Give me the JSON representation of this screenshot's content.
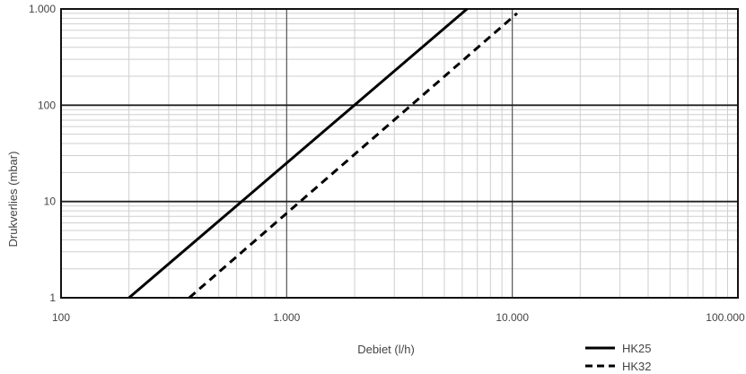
{
  "chart_data": {
    "type": "line",
    "x_scale": "log",
    "y_scale": "log",
    "xlabel": "Debiet (l/h)",
    "ylabel": "Drukverlies (mbar)",
    "xlim": [
      100,
      100000
    ],
    "ylim": [
      1,
      1000
    ],
    "x_ticks": [
      {
        "value": 100,
        "label": "100"
      },
      {
        "value": 1000,
        "label": "1.000"
      },
      {
        "value": 10000,
        "label": "10.000"
      },
      {
        "value": 100000,
        "label": "100.000"
      }
    ],
    "y_ticks": [
      {
        "value": 1,
        "label": "1"
      },
      {
        "value": 10,
        "label": "10"
      },
      {
        "value": 100,
        "label": "100"
      },
      {
        "value": 1000,
        "label": "1.000"
      }
    ],
    "grid": true,
    "legend_position": "bottom-right",
    "series": [
      {
        "name": "HK25",
        "style": "solid",
        "color": "#000000",
        "x": [
          200,
          6300
        ],
        "y": [
          1,
          1000
        ]
      },
      {
        "name": "HK32",
        "style": "dashed",
        "color": "#000000",
        "x": [
          370,
          10500
        ],
        "y": [
          1,
          900
        ]
      }
    ]
  }
}
